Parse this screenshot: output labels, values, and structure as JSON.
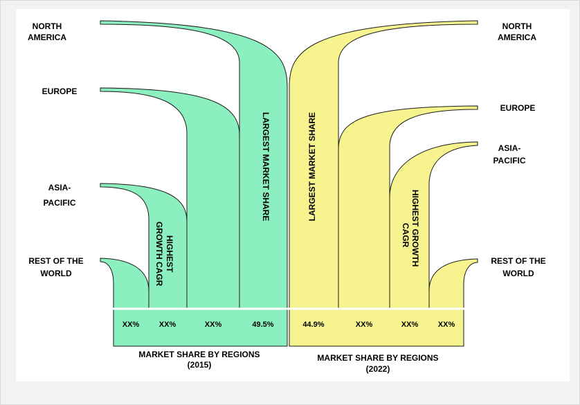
{
  "colors": {
    "left_fill": "#8cefbf",
    "right_fill": "#f7f48f",
    "stroke": "#1a1a1a",
    "divider": "#ffffff"
  },
  "left_side": {
    "caption": [
      "MARKET SHARE BY REGIONS",
      "(2015)"
    ],
    "regions": [
      {
        "name": [
          "NORTH",
          "AMERICA"
        ],
        "value": "49.5%"
      },
      {
        "name": [
          "EUROPE"
        ],
        "value": "XX%"
      },
      {
        "name": [
          "ASIA-",
          "PACIFIC"
        ],
        "value": "XX%"
      },
      {
        "name": [
          "REST OF THE",
          "WORLD"
        ],
        "value": "XX%"
      }
    ],
    "callouts": {
      "largest": "LARGEST MARKET SHARE",
      "growth": [
        "HIGHEST",
        "GROWTH CAGR"
      ]
    }
  },
  "right_side": {
    "caption": [
      "MARKET SHARE BY REGIONS",
      "(2022)"
    ],
    "regions": [
      {
        "name": [
          "NORTH",
          "AMERICA"
        ],
        "value": "44.9%"
      },
      {
        "name": [
          "EUROPE"
        ],
        "value": "XX%"
      },
      {
        "name": [
          "ASIA-",
          "PACIFIC"
        ],
        "value": "XX%"
      },
      {
        "name": [
          "REST OF THE",
          "WORLD"
        ],
        "value": "XX%"
      }
    ],
    "callouts": {
      "largest": "LARGEST MARKET SHARE",
      "growth": [
        "HIGHEST GROWTH",
        "CAGR"
      ]
    }
  }
}
